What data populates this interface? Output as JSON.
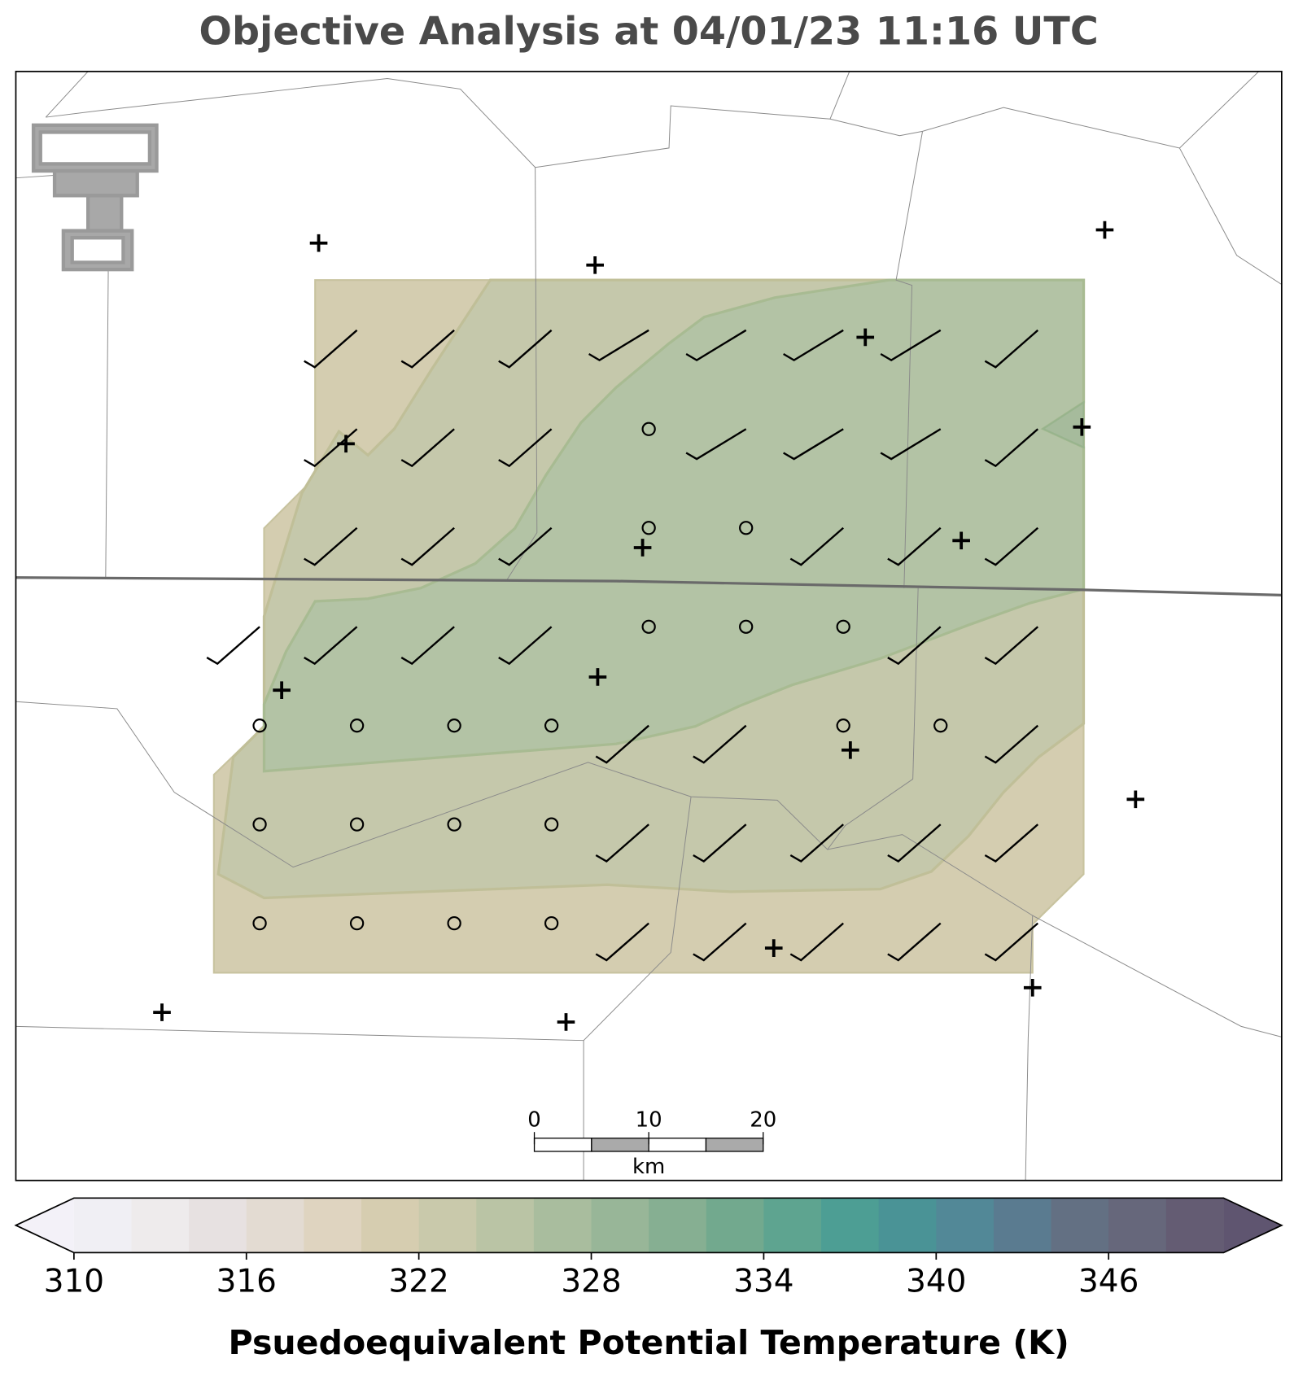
{
  "title": "Objective Analysis at 04/01/23 11:16 UTC",
  "colorbar": {
    "lim": [
      310,
      350
    ],
    "ticks": [
      310,
      316,
      322,
      328,
      334,
      340,
      346
    ],
    "colors": [
      "#f0eff4",
      "#eeebec",
      "#e7e1e1",
      "#e3dbd2",
      "#dfd4c0",
      "#d6cdb0",
      "#c9c9ab",
      "#bac4a5",
      "#a9bd9e",
      "#98b698",
      "#86af92",
      "#72a98e",
      "#5ea490",
      "#4d9e94",
      "#4a9396",
      "#528897",
      "#5a7b90",
      "#637083",
      "#66677b",
      "#645c73"
    ],
    "under_color": "#f3f1f8",
    "over_color": "#5f5570",
    "label": "Psuedoequivalent Potential Temperature (K)"
  },
  "scale_bar": {
    "lim": [
      0,
      20
    ],
    "ticks": [
      0,
      10,
      20
    ],
    "unit": "km"
  }
}
